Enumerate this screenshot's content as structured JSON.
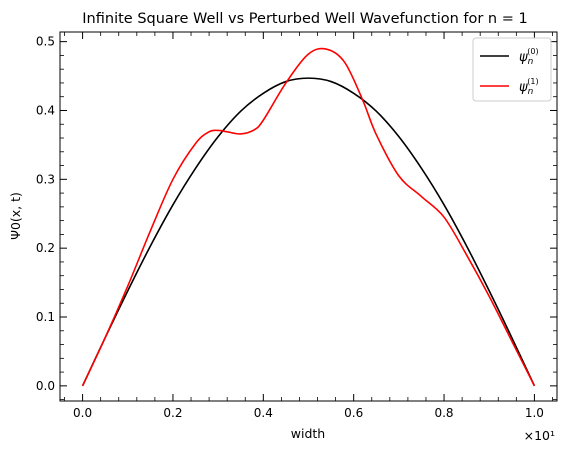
{
  "chart_data": {
    "type": "line",
    "title": "Infinite Square Well vs Perturbed Well Wavefunction for n = 1",
    "xlabel": "width",
    "ylabel": "Ψ0(x, t)",
    "x_offset_label": "×10¹",
    "xlim": [
      -0.05,
      1.05
    ],
    "ylim": [
      -0.022,
      0.514
    ],
    "xticks": [
      0.0,
      0.2,
      0.4,
      0.6,
      0.8,
      1.0
    ],
    "xtick_labels": [
      "0.0",
      "0.2",
      "0.4",
      "0.6",
      "0.8",
      "1.0"
    ],
    "yticks": [
      0.0,
      0.1,
      0.2,
      0.3,
      0.4,
      0.5
    ],
    "ytick_labels": [
      "0.0",
      "0.1",
      "0.2",
      "0.3",
      "0.4",
      "0.5"
    ],
    "grid": false,
    "legend_position": "top-right",
    "series": [
      {
        "name": "ψn(0)",
        "legend_base": "ψ",
        "legend_sub": "n",
        "legend_sup": "(0)",
        "color": "#000000",
        "x": [
          0.0,
          0.05,
          0.1,
          0.15,
          0.2,
          0.25,
          0.3,
          0.35,
          0.4,
          0.45,
          0.5,
          0.55,
          0.6,
          0.65,
          0.7,
          0.75,
          0.8,
          0.85,
          0.9,
          0.95,
          1.0
        ],
        "y": [
          0.0,
          0.07,
          0.138,
          0.203,
          0.263,
          0.316,
          0.362,
          0.399,
          0.425,
          0.442,
          0.447,
          0.442,
          0.425,
          0.399,
          0.362,
          0.316,
          0.263,
          0.203,
          0.138,
          0.07,
          0.0
        ]
      },
      {
        "name": "ψn(1)",
        "legend_base": "ψ",
        "legend_sub": "n",
        "legend_sup": "(1)",
        "color": "#ff0000",
        "x": [
          0.0,
          0.05,
          0.1,
          0.15,
          0.2,
          0.25,
          0.28,
          0.3,
          0.32,
          0.35,
          0.38,
          0.4,
          0.45,
          0.5,
          0.54,
          0.58,
          0.62,
          0.65,
          0.7,
          0.75,
          0.8,
          0.85,
          0.9,
          0.95,
          1.0
        ],
        "y": [
          0.0,
          0.07,
          0.145,
          0.225,
          0.3,
          0.352,
          0.369,
          0.371,
          0.369,
          0.366,
          0.372,
          0.386,
          0.44,
          0.482,
          0.489,
          0.47,
          0.415,
          0.365,
          0.305,
          0.275,
          0.245,
          0.19,
          0.13,
          0.065,
          0.0
        ]
      }
    ]
  }
}
